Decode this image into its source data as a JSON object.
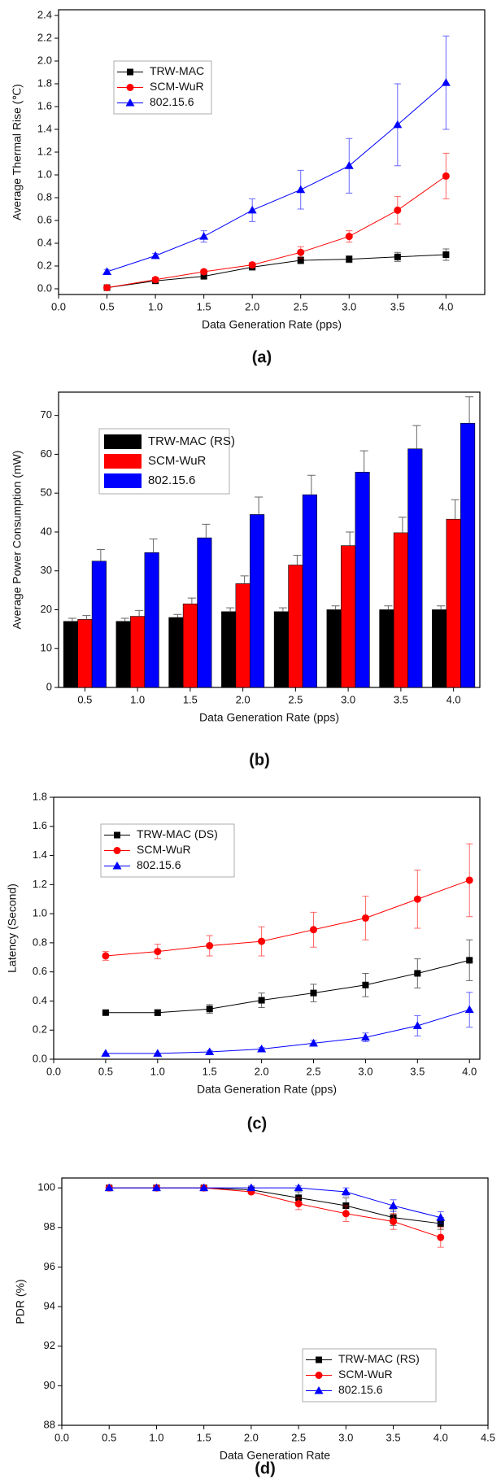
{
  "chart_data": [
    {
      "type": "line",
      "caption": "(a)",
      "x_label": "Data Generation Rate (pps)",
      "y_label": "Average Thermal Rise (℃)",
      "x": [
        0.5,
        1.0,
        1.5,
        2.0,
        2.5,
        3.0,
        3.5,
        4.0
      ],
      "xlim": [
        0,
        4.4
      ],
      "ylim": [
        -0.05,
        2.45
      ],
      "xticks": [
        {
          "value": 0,
          "label": "0.0"
        },
        0.5,
        {
          "value": 1,
          "label": "1.0"
        },
        1.5,
        {
          "value": 2,
          "label": "2.0"
        },
        2.5,
        {
          "value": 3,
          "label": "3.0"
        },
        3.5,
        {
          "value": 4,
          "label": "4.0"
        }
      ],
      "yticks": [
        {
          "value": 0,
          "label": "0.0"
        },
        0.2,
        0.4,
        0.6,
        0.8,
        {
          "value": 1,
          "label": "1.0"
        },
        1.2,
        1.4,
        1.6,
        1.8,
        {
          "value": 2,
          "label": "2.0"
        },
        2.2,
        2.4
      ],
      "legend": "upper-left",
      "series": [
        {
          "name": "TRW-MAC",
          "color": "#000000",
          "marker": "square",
          "values": [
            0.01,
            0.07,
            0.11,
            0.19,
            0.25,
            0.26,
            0.28,
            0.3
          ],
          "errors": [
            0.01,
            0.01,
            0.02,
            0.02,
            0.03,
            0.03,
            0.04,
            0.05
          ]
        },
        {
          "name": "SCM-WuR",
          "color": "#ff0000",
          "marker": "circle",
          "values": [
            0.01,
            0.08,
            0.15,
            0.21,
            0.32,
            0.46,
            0.69,
            0.99
          ],
          "errors": [
            0.01,
            0.02,
            0.02,
            0.02,
            0.05,
            0.05,
            0.12,
            0.2
          ]
        },
        {
          "name": "802.15.6",
          "color": "#0000ff",
          "marker": "triangle",
          "values": [
            0.15,
            0.29,
            0.46,
            0.69,
            0.87,
            1.08,
            1.44,
            1.81
          ],
          "errors": [
            0.02,
            0.02,
            0.05,
            0.1,
            0.17,
            0.24,
            0.36,
            0.41
          ]
        }
      ]
    },
    {
      "type": "bar",
      "caption": "(b)",
      "x_label": "Data Generation Rate (pps)",
      "y_label": "Average Power Consumption (mW)",
      "categories": [
        "0.5",
        "1.0",
        "1.5",
        "2.0",
        "2.5",
        "3.0",
        "3.5",
        "4.0"
      ],
      "ylim": [
        0,
        76
      ],
      "yticks": [
        0,
        10,
        20,
        30,
        40,
        50,
        60,
        70
      ],
      "legend": "upper-left",
      "series": [
        {
          "name": "TRW-MAC (RS)",
          "color": "#000000",
          "values": [
            17,
            17,
            18,
            19.5,
            19.5,
            20,
            20,
            20
          ],
          "errors": [
            0.8,
            0.8,
            0.8,
            1,
            1,
            1,
            1,
            1
          ]
        },
        {
          "name": "SCM-WuR",
          "color": "#ff0000",
          "values": [
            17.5,
            18.3,
            21.5,
            26.7,
            31.5,
            36.5,
            39.8,
            43.3
          ],
          "errors": [
            1,
            1.5,
            1.5,
            2,
            2.5,
            3.5,
            4,
            5
          ]
        },
        {
          "name": "802.15.6",
          "color": "#0000ff",
          "values": [
            32.5,
            34.7,
            38.5,
            44.5,
            49.6,
            55.4,
            61.4,
            68
          ],
          "errors": [
            3,
            3.5,
            3.5,
            4.5,
            5,
            5.5,
            6,
            6.8
          ]
        }
      ]
    },
    {
      "type": "line",
      "caption": "(c)",
      "x_label": "Data Generation Rate (pps)",
      "y_label": "Latency (Second)",
      "x": [
        0.5,
        1.0,
        1.5,
        2.0,
        2.5,
        3.0,
        3.5,
        4.0
      ],
      "xlim": [
        0,
        4.1
      ],
      "ylim": [
        0,
        1.8
      ],
      "xticks": [
        {
          "value": 0,
          "label": "0.0"
        },
        0.5,
        {
          "value": 1,
          "label": "1.0"
        },
        1.5,
        {
          "value": 2,
          "label": "2.0"
        },
        2.5,
        {
          "value": 3,
          "label": "3.0"
        },
        3.5,
        {
          "value": 4,
          "label": "4.0"
        }
      ],
      "yticks": [
        {
          "value": 0,
          "label": "0.0"
        },
        0.2,
        0.4,
        0.6,
        0.8,
        {
          "value": 1,
          "label": "1.0"
        },
        1.2,
        1.4,
        1.6,
        1.8
      ],
      "legend": "upper-left",
      "series": [
        {
          "name": "TRW-MAC (DS)",
          "color": "#000000",
          "marker": "square",
          "values": [
            0.32,
            0.32,
            0.345,
            0.405,
            0.455,
            0.51,
            0.59,
            0.68
          ],
          "errors": [
            0.01,
            0.02,
            0.03,
            0.05,
            0.06,
            0.08,
            0.1,
            0.14
          ]
        },
        {
          "name": "SCM-WuR",
          "color": "#ff0000",
          "marker": "circle",
          "values": [
            0.71,
            0.74,
            0.78,
            0.81,
            0.89,
            0.97,
            1.1,
            1.23
          ],
          "errors": [
            0.03,
            0.05,
            0.07,
            0.1,
            0.12,
            0.15,
            0.2,
            0.25
          ]
        },
        {
          "name": "802.15.6",
          "color": "#0000ff",
          "marker": "triangle",
          "values": [
            0.04,
            0.04,
            0.05,
            0.07,
            0.11,
            0.15,
            0.23,
            0.34
          ],
          "errors": [
            0,
            0,
            0.01,
            0.01,
            0.02,
            0.03,
            0.07,
            0.12
          ]
        }
      ]
    },
    {
      "type": "line",
      "caption": "(d)",
      "x_label": "Data Generation Rate",
      "y_label": "PDR (%)",
      "x": [
        0.5,
        1.0,
        1.5,
        2.0,
        2.5,
        3.0,
        3.5,
        4.0
      ],
      "xlim": [
        0,
        4.5
      ],
      "ylim": [
        88,
        100.5
      ],
      "xticks": [
        {
          "value": 0,
          "label": "0.0"
        },
        0.5,
        {
          "value": 1,
          "label": "1.0"
        },
        1.5,
        {
          "value": 2,
          "label": "2.0"
        },
        2.5,
        {
          "value": 3,
          "label": "3.0"
        },
        3.5,
        {
          "value": 4,
          "label": "4.0"
        },
        4.5
      ],
      "yticks": [
        88,
        90,
        92,
        94,
        96,
        98,
        100
      ],
      "legend": "lower-right",
      "series": [
        {
          "name": "TRW-MAC (RS)",
          "color": "#000000",
          "marker": "square",
          "values": [
            100,
            100,
            100,
            99.9,
            99.5,
            99.1,
            98.5,
            98.2
          ],
          "errors": [
            0,
            0,
            0,
            0.1,
            0.3,
            0.4,
            0.4,
            0.3
          ]
        },
        {
          "name": "SCM-WuR",
          "color": "#ff0000",
          "marker": "circle",
          "values": [
            100,
            100,
            100,
            99.8,
            99.2,
            98.7,
            98.3,
            97.5
          ],
          "errors": [
            0,
            0,
            0,
            0.1,
            0.3,
            0.4,
            0.4,
            0.5
          ]
        },
        {
          "name": "802.15.6",
          "color": "#0000ff",
          "marker": "triangle",
          "values": [
            100,
            100,
            100,
            100,
            100,
            99.8,
            99.1,
            98.5
          ],
          "errors": [
            0,
            0,
            0,
            0.1,
            0.1,
            0.2,
            0.3,
            0.3
          ]
        }
      ]
    }
  ]
}
